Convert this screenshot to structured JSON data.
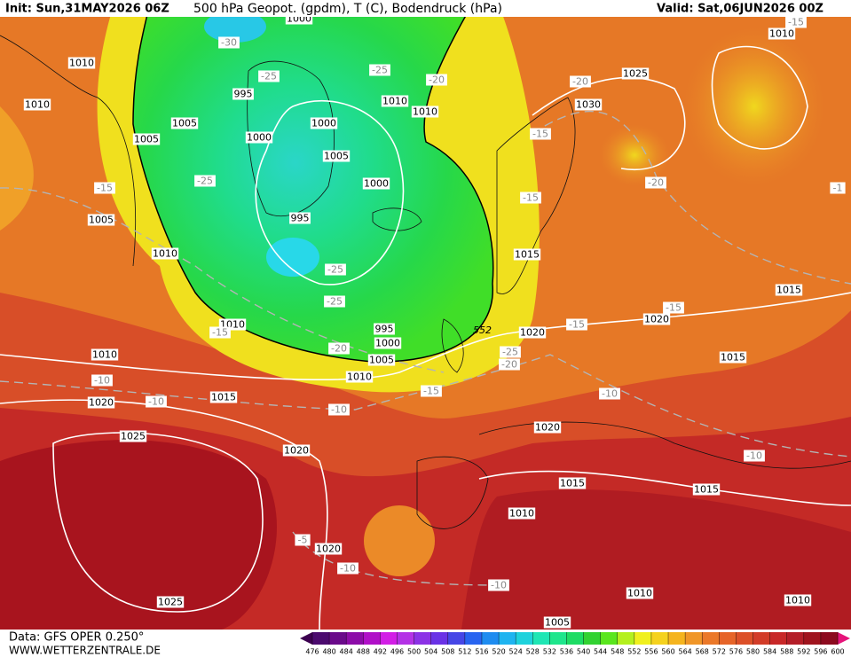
{
  "header": {
    "init": "Init: Sun,31MAY2026 06Z",
    "title": "500 hPa Geopot. (gpdm), T (C), Bodendruck (hPa)",
    "valid": "Valid: Sat,06JUN2026 00Z"
  },
  "footer": {
    "source": "Data: GFS OPER 0.250°",
    "site": "WWW.WETTERZENTRALE.DE"
  },
  "map": {
    "contour_label": "552",
    "isobar_labels": [
      "1010",
      "1010",
      "1005",
      "1005",
      "995",
      "1000",
      "1000",
      "1005",
      "1000",
      "995",
      "1010",
      "1010",
      "1000",
      "1005",
      "1010",
      "1010",
      "995",
      "1000",
      "1005",
      "1010",
      "1010",
      "1015",
      "1020",
      "1025",
      "1020",
      "1020",
      "1025",
      "1015",
      "1020",
      "1020",
      "1015",
      "1015",
      "1020",
      "1015",
      "1015",
      "1010",
      "1010",
      "1010",
      "1005",
      "1010",
      "1025",
      "1030"
    ],
    "temperature_labels": [
      "-30",
      "-25",
      "-25",
      "-20",
      "-25",
      "-25",
      "-25",
      "-20",
      "-15",
      "-15",
      "-10",
      "-10",
      "-10",
      "-15",
      "-20",
      "-25",
      "-15",
      "-15",
      "-20",
      "-20",
      "-15",
      "-15",
      "-15",
      "-10",
      "-10",
      "-5",
      "-10",
      "-10",
      "-1"
    ]
  },
  "colorbar": {
    "levels": [
      476,
      480,
      484,
      488,
      492,
      496,
      500,
      504,
      508,
      512,
      516,
      520,
      524,
      528,
      532,
      536,
      540,
      544,
      548,
      552,
      556,
      560,
      564,
      568,
      572,
      576,
      580,
      584,
      588,
      592,
      596,
      600
    ],
    "colors": [
      "#4b0a6e",
      "#6a0a8a",
      "#8c0ca8",
      "#b010c8",
      "#d21ee6",
      "#b432e6",
      "#8c32e6",
      "#6a32e6",
      "#4646e6",
      "#2864f0",
      "#1e8cf0",
      "#1eb4f0",
      "#1ed2dc",
      "#1ee6b4",
      "#1ee68c",
      "#1edc64",
      "#32d232",
      "#5ae61e",
      "#b4f01e",
      "#f0f01e",
      "#f5d21e",
      "#f5b41e",
      "#f09628",
      "#eb7828",
      "#e66428",
      "#dc5028",
      "#d23c28",
      "#c82828",
      "#b41e28",
      "#a0141e",
      "#8c0a1e"
    ],
    "low_color": "#3c0050",
    "high_color": "#e6147a"
  }
}
